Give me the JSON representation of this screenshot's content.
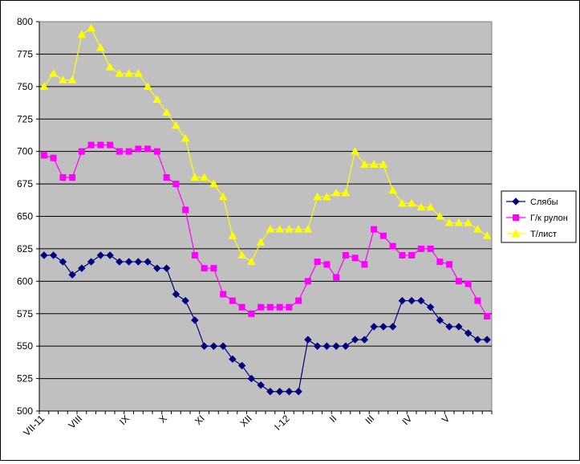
{
  "chart_data": {
    "type": "line",
    "title": "",
    "xlabel": "",
    "ylabel": "",
    "ylim": [
      500,
      800
    ],
    "yticks": [
      500,
      525,
      550,
      575,
      600,
      625,
      650,
      675,
      700,
      725,
      750,
      775,
      800
    ],
    "grid": "horizontal",
    "plot_background": "#c0c0c0",
    "legend_position": "right",
    "x_points": 48,
    "x_tick_labels": [
      {
        "label": "VII-11",
        "index": 0
      },
      {
        "label": "VIII",
        "index": 4
      },
      {
        "label": "IX",
        "index": 9
      },
      {
        "label": "X",
        "index": 13
      },
      {
        "label": "XI",
        "index": 17
      },
      {
        "label": "XII",
        "index": 22
      },
      {
        "label": "I-12",
        "index": 26
      },
      {
        "label": "II",
        "index": 31
      },
      {
        "label": "III",
        "index": 35
      },
      {
        "label": "IV",
        "index": 39
      },
      {
        "label": "V",
        "index": 43
      }
    ],
    "series": [
      {
        "name": "Слябы",
        "color": "#000080",
        "marker": "diamond",
        "values": [
          620,
          620,
          615,
          605,
          610,
          615,
          620,
          620,
          615,
          615,
          615,
          615,
          610,
          610,
          590,
          585,
          570,
          550,
          550,
          550,
          540,
          535,
          525,
          520,
          515,
          515,
          515,
          515,
          555,
          550,
          550,
          550,
          550,
          555,
          555,
          565,
          565,
          565,
          585,
          585,
          585,
          580,
          570,
          565,
          565,
          560,
          555,
          555
        ]
      },
      {
        "name": "Г/к рулон",
        "color": "#ff00ff",
        "marker": "square",
        "values": [
          697,
          695,
          680,
          680,
          700,
          705,
          705,
          705,
          700,
          700,
          702,
          702,
          700,
          680,
          675,
          655,
          620,
          610,
          610,
          590,
          585,
          580,
          575,
          580,
          580,
          580,
          580,
          585,
          600,
          615,
          613,
          603,
          620,
          618,
          613,
          640,
          635,
          627,
          620,
          620,
          625,
          625,
          615,
          613,
          600,
          598,
          585,
          573
        ]
      },
      {
        "name": "Т/лист",
        "color": "#ffff00",
        "marker": "triangle",
        "values": [
          750,
          760,
          755,
          755,
          790,
          795,
          780,
          765,
          760,
          760,
          760,
          750,
          740,
          730,
          720,
          710,
          680,
          680,
          675,
          665,
          635,
          620,
          615,
          630,
          640,
          640,
          640,
          640,
          640,
          665,
          665,
          668,
          668,
          700,
          690,
          690,
          690,
          670,
          660,
          660,
          657,
          657,
          650,
          645,
          645,
          645,
          640,
          635
        ]
      }
    ]
  }
}
